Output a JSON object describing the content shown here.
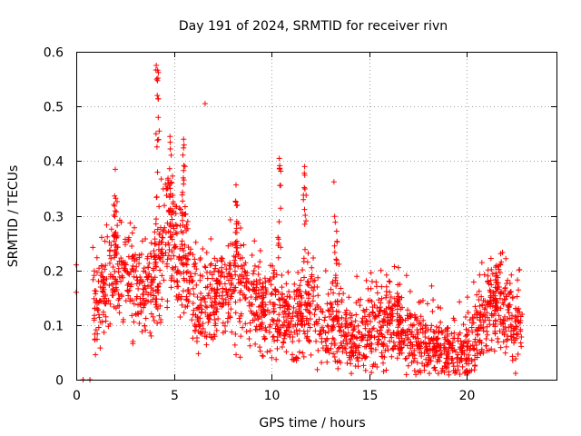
{
  "chart_data": {
    "type": "scatter",
    "title": "Day 191 of 2024, SRMTID for receiver rivn",
    "xlabel": "GPS time / hours",
    "ylabel": "SRMTID / TECUs",
    "xlim": [
      0,
      24.6
    ],
    "ylim": [
      0,
      0.6
    ],
    "xticks": [
      0,
      5,
      10,
      15,
      20
    ],
    "yticks": [
      0,
      0.1,
      0.2,
      0.3,
      0.4,
      0.5,
      0.6
    ],
    "xtick_labels": [
      "0",
      "5",
      "10",
      "15",
      "20"
    ],
    "ytick_labels": [
      "0",
      "0.1",
      "0.2",
      "0.3",
      "0.4",
      "0.5",
      "0.6"
    ],
    "grid": true,
    "marker": "+",
    "marker_color": "#ff0000",
    "envelope": {
      "description": "approximate typical SRMTID level vs time (hours, TECU); points are scattered around this level",
      "x": [
        0.0,
        0.5,
        1.0,
        1.5,
        2.0,
        2.5,
        3.0,
        3.5,
        4.0,
        4.5,
        5.0,
        5.5,
        6.0,
        6.5,
        7.0,
        7.5,
        8.0,
        8.5,
        9.0,
        9.5,
        10.0,
        10.5,
        11.0,
        11.5,
        12.0,
        12.5,
        13.0,
        13.5,
        14.0,
        14.5,
        15.0,
        15.5,
        16.0,
        16.5,
        17.0,
        17.5,
        18.0,
        18.5,
        19.0,
        19.5,
        20.0,
        20.5,
        21.0,
        21.5,
        22.0,
        22.5,
        22.8
      ],
      "y": [
        0.17,
        0.14,
        0.12,
        0.17,
        0.2,
        0.19,
        0.17,
        0.14,
        0.19,
        0.26,
        0.27,
        0.22,
        0.16,
        0.13,
        0.14,
        0.16,
        0.18,
        0.17,
        0.16,
        0.13,
        0.12,
        0.13,
        0.1,
        0.11,
        0.14,
        0.11,
        0.09,
        0.1,
        0.07,
        0.07,
        0.09,
        0.1,
        0.11,
        0.09,
        0.08,
        0.07,
        0.06,
        0.06,
        0.05,
        0.05,
        0.05,
        0.08,
        0.12,
        0.15,
        0.12,
        0.09,
        0.1
      ]
    },
    "notable_points": [
      {
        "x": 0.0,
        "y": 0.21
      },
      {
        "x": 0.0,
        "y": 0.16
      },
      {
        "x": 0.35,
        "y": 0.0
      },
      {
        "x": 0.7,
        "y": 0.0
      },
      {
        "x": 2.0,
        "y": 0.385
      },
      {
        "x": 4.1,
        "y": 0.575
      },
      {
        "x": 4.12,
        "y": 0.55
      },
      {
        "x": 4.15,
        "y": 0.52
      },
      {
        "x": 4.2,
        "y": 0.48
      },
      {
        "x": 4.25,
        "y": 0.455
      },
      {
        "x": 4.8,
        "y": 0.445
      },
      {
        "x": 5.5,
        "y": 0.44
      },
      {
        "x": 6.6,
        "y": 0.505
      },
      {
        "x": 10.4,
        "y": 0.405
      },
      {
        "x": 11.7,
        "y": 0.39
      },
      {
        "x": 13.2,
        "y": 0.362
      },
      {
        "x": 16.5,
        "y": 0.205
      },
      {
        "x": 21.5,
        "y": 0.195
      }
    ]
  }
}
